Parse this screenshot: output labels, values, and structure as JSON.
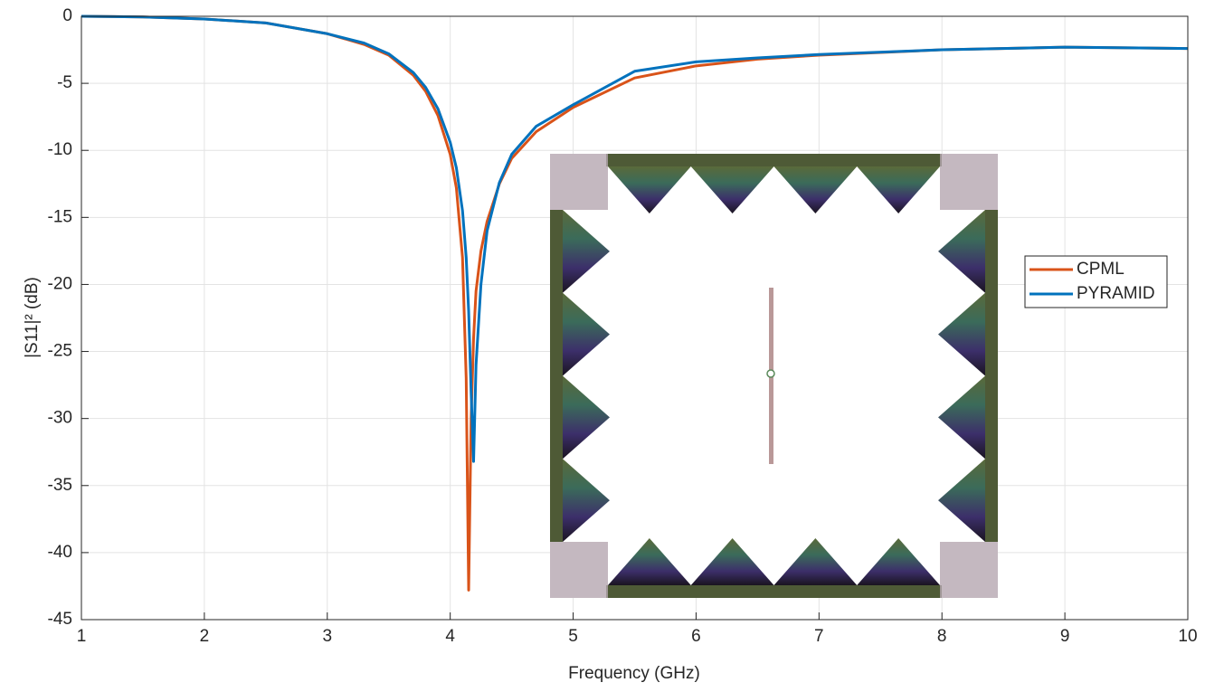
{
  "chart_data": {
    "type": "line",
    "x_label": "Frequency (GHz)",
    "y_label": "|S11|² (dB)",
    "x": [
      1,
      1.5,
      2,
      2.5,
      3,
      3.3,
      3.5,
      3.7,
      3.8,
      3.9,
      4.0,
      4.05,
      4.1,
      4.13,
      4.15,
      4.17,
      4.19,
      4.21,
      4.25,
      4.3,
      4.4,
      4.5,
      4.7,
      5,
      5.5,
      6,
      6.5,
      7,
      8,
      9,
      10
    ],
    "series": [
      {
        "name": "CPML",
        "color": "#d95319",
        "values": [
          0,
          -0.05,
          -0.2,
          -0.5,
          -1.3,
          -2.1,
          -2.9,
          -4.4,
          -5.6,
          -7.4,
          -10.3,
          -12.8,
          -18,
          -27,
          -42.8,
          -30,
          -24,
          -20.5,
          -17.5,
          -15.3,
          -12.5,
          -10.6,
          -8.6,
          -6.8,
          -4.6,
          -3.7,
          -3.2,
          -2.9,
          -2.5,
          -2.3,
          -2.4
        ]
      },
      {
        "name": "PYRAMID",
        "color": "#0072bd",
        "values": [
          0,
          -0.05,
          -0.2,
          -0.5,
          -1.3,
          -2.0,
          -2.8,
          -4.2,
          -5.3,
          -6.9,
          -9.4,
          -11.3,
          -14.5,
          -18,
          -22,
          -28,
          -33.2,
          -26,
          -20,
          -16,
          -12.4,
          -10.3,
          -8.2,
          -6.6,
          -4.1,
          -3.4,
          -3.1,
          -2.85,
          -2.5,
          -2.3,
          -2.4
        ]
      }
    ],
    "xlim": [
      1,
      10
    ],
    "xticks": [
      1,
      2,
      3,
      4,
      5,
      6,
      7,
      8,
      9,
      10
    ],
    "ylim": [
      -45,
      0
    ],
    "yticks": [
      0,
      -5,
      -10,
      -15,
      -20,
      -25,
      -30,
      -35,
      -40,
      -45
    ],
    "grid": true,
    "legend": "right"
  }
}
